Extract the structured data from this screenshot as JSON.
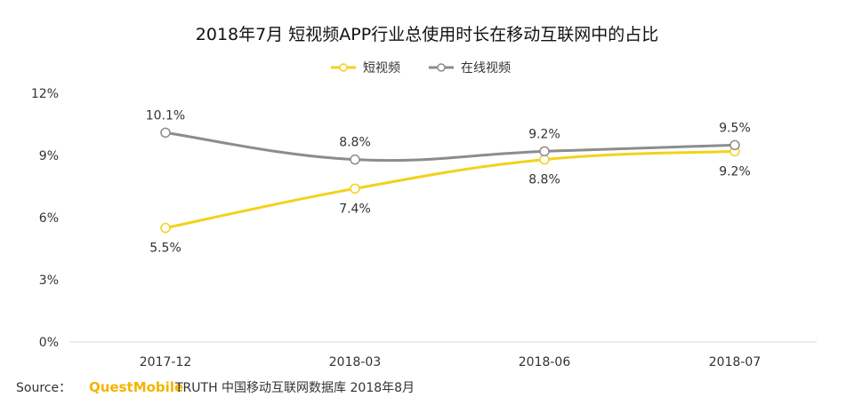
{
  "chart_data": {
    "type": "line",
    "title": "2018年7月 短视频APP行业总使用时长在移动互联网中的占比",
    "categories": [
      "2017-12",
      "2018-03",
      "2018-06",
      "2018-07"
    ],
    "y_ticks": [
      "0%",
      "3%",
      "6%",
      "9%",
      "12%"
    ],
    "ylim": [
      0,
      12
    ],
    "unit": "%",
    "grid": false,
    "legend_position": "top-center",
    "series": [
      {
        "name": "短视频",
        "color": "#f2d21b",
        "values": [
          5.5,
          7.4,
          8.8,
          9.2
        ],
        "labels": [
          "5.5%",
          "7.4%",
          "8.8%",
          "9.2%"
        ],
        "label_side": "below"
      },
      {
        "name": "在线视频",
        "color": "#8c8c8c",
        "values": [
          10.1,
          8.8,
          9.2,
          9.5
        ],
        "labels": [
          "10.1%",
          "8.8%",
          "9.2%",
          "9.5%"
        ],
        "label_side": "above"
      }
    ]
  },
  "footer": {
    "source_label": "Source：",
    "brand": "QuestMobile",
    "source_text": "TRUTH 中国移动互联网数据库 2018年8月"
  }
}
